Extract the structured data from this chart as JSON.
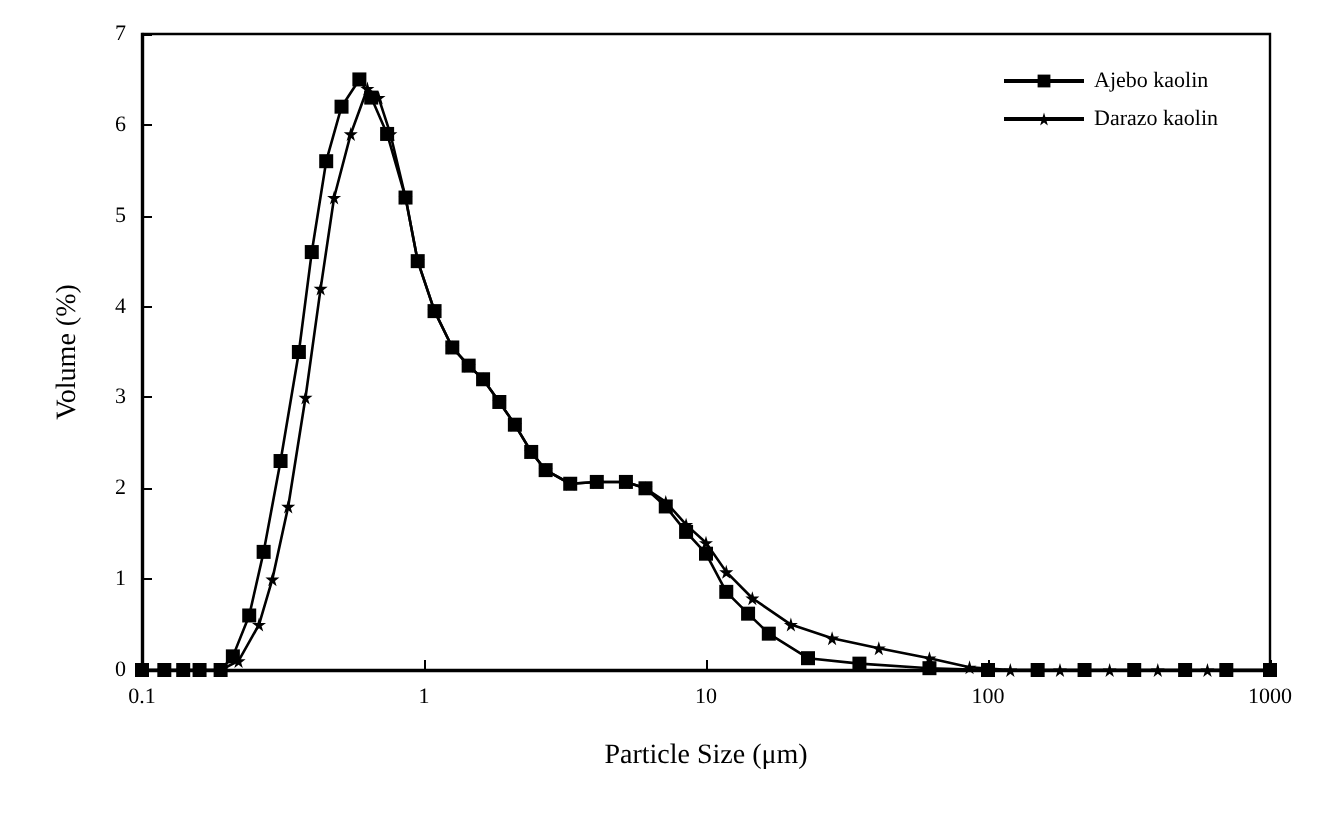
{
  "chart_data": {
    "type": "line",
    "xlabel": "Particle Size (μm)",
    "ylabel": "Volume (%)",
    "log": "x",
    "xlim": [
      0.1,
      1000
    ],
    "xticks": [
      0.1,
      1,
      10,
      100,
      1000
    ],
    "ylim": [
      0,
      7
    ],
    "yticks": [
      0,
      1,
      2,
      3,
      4,
      5,
      6,
      7
    ],
    "grid": false,
    "legend": "top right",
    "series": [
      {
        "name": "Ajebo kaolin",
        "color": "#000000",
        "marker": "square",
        "x": [
          0.1,
          0.12,
          0.14,
          0.16,
          0.19,
          0.21,
          0.24,
          0.27,
          0.31,
          0.36,
          0.4,
          0.45,
          0.51,
          0.59,
          0.65,
          0.74,
          0.86,
          0.95,
          1.09,
          1.26,
          1.44,
          1.62,
          1.85,
          2.1,
          2.4,
          2.7,
          3.3,
          4.1,
          5.2,
          6.1,
          7.2,
          8.5,
          10,
          11.8,
          14.1,
          16.7,
          23,
          35,
          62,
          100,
          150,
          220,
          330,
          500,
          700,
          1000
        ],
        "values": [
          0,
          0,
          0,
          0,
          0,
          0.15,
          0.6,
          1.3,
          2.3,
          3.5,
          4.6,
          5.6,
          6.2,
          6.5,
          6.3,
          5.9,
          5.2,
          4.5,
          3.95,
          3.55,
          3.35,
          3.2,
          2.95,
          2.7,
          2.4,
          2.2,
          2.05,
          2.07,
          2.07,
          2.0,
          1.8,
          1.52,
          1.28,
          0.86,
          0.62,
          0.4,
          0.13,
          0.07,
          0.02,
          0,
          0,
          0,
          0,
          0,
          0,
          0
        ]
      },
      {
        "name": "Darazo kaolin",
        "color": "#000000",
        "marker": "star",
        "x": [
          0.1,
          0.12,
          0.14,
          0.16,
          0.19,
          0.22,
          0.26,
          0.29,
          0.33,
          0.38,
          0.43,
          0.48,
          0.55,
          0.63,
          0.69,
          0.76,
          0.86,
          0.95,
          1.09,
          1.26,
          1.44,
          1.62,
          1.85,
          2.1,
          2.4,
          2.7,
          3.3,
          4.1,
          5.2,
          6.1,
          7.2,
          8.5,
          10,
          11.8,
          14.6,
          20,
          28,
          41,
          62,
          86,
          120,
          180,
          270,
          400,
          600,
          1000
        ],
        "values": [
          0,
          0,
          0,
          0,
          0,
          0.1,
          0.5,
          1.0,
          1.8,
          3.0,
          4.2,
          5.2,
          5.9,
          6.4,
          6.3,
          5.9,
          5.2,
          4.5,
          3.95,
          3.55,
          3.35,
          3.2,
          2.95,
          2.7,
          2.4,
          2.2,
          2.05,
          2.07,
          2.07,
          2.0,
          1.85,
          1.6,
          1.4,
          1.08,
          0.79,
          0.5,
          0.35,
          0.24,
          0.13,
          0.03,
          0,
          0,
          0,
          0,
          0,
          0
        ]
      }
    ]
  }
}
